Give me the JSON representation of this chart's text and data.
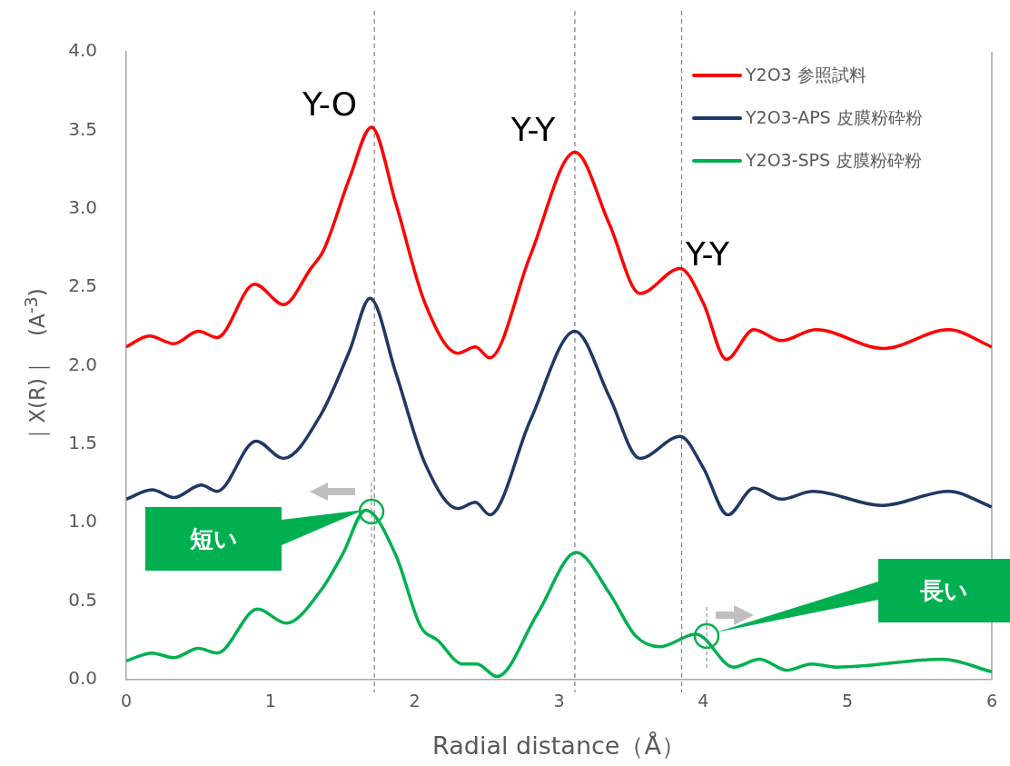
{
  "chart_data": {
    "type": "line",
    "xlabel": "Radial distance（Å）",
    "ylabel": "｜X(R)｜　(A$^{-3}$)",
    "xlim": [
      0,
      6
    ],
    "xticks": [
      0,
      1,
      2,
      3,
      4,
      5,
      6
    ],
    "ylim": [
      0,
      4
    ],
    "yticks": [
      {
        "value": 0,
        "label": "0.0"
      },
      {
        "value": 0.5,
        "label": "0.5"
      },
      {
        "value": 1,
        "label": "1.0"
      },
      {
        "value": 1.5,
        "label": "1.5"
      },
      {
        "value": 2,
        "label": "2.0"
      },
      {
        "value": 2.5,
        "label": "2.5"
      },
      {
        "value": 3,
        "label": "3.0"
      },
      {
        "value": 3.5,
        "label": "3.5"
      },
      {
        "value": 4,
        "label": "4.0"
      }
    ],
    "grid": false,
    "legend": "top right",
    "marker": "none",
    "line_style": "solid",
    "series": [
      {
        "name": "Y2O3 参照試料",
        "color": "#ff0000",
        "x": [
          0,
          0.16,
          0.33,
          0.5,
          0.63,
          0.89,
          1.09,
          1.28,
          1.37,
          1.55,
          1.7,
          1.87,
          2.07,
          2.3,
          2.42,
          2.52,
          2.8,
          3.11,
          3.35,
          3.56,
          3.84,
          4.0,
          4.16,
          4.35,
          4.54,
          4.78,
          5.25,
          5.7,
          6.0
        ],
        "values": [
          2.12,
          2.19,
          2.14,
          2.22,
          2.18,
          2.52,
          2.39,
          2.62,
          2.74,
          3.2,
          3.52,
          3.03,
          2.4,
          2.08,
          2.12,
          2.05,
          2.7,
          3.36,
          2.9,
          2.46,
          2.62,
          2.4,
          2.04,
          2.23,
          2.16,
          2.23,
          2.11,
          2.23,
          2.12
        ]
      },
      {
        "name": "Y2O3-APS 皮膜粉砕粉",
        "color": "#1f3864",
        "x": [
          0,
          0.18,
          0.33,
          0.52,
          0.63,
          0.9,
          1.09,
          1.35,
          1.55,
          1.69,
          1.87,
          2.07,
          2.3,
          2.42,
          2.52,
          2.8,
          3.11,
          3.35,
          3.56,
          3.84,
          4.0,
          4.17,
          4.35,
          4.54,
          4.76,
          5.24,
          5.7,
          6.0
        ],
        "values": [
          1.15,
          1.21,
          1.16,
          1.24,
          1.2,
          1.52,
          1.41,
          1.69,
          2.1,
          2.43,
          1.95,
          1.38,
          1.09,
          1.13,
          1.05,
          1.65,
          2.22,
          1.8,
          1.41,
          1.55,
          1.35,
          1.05,
          1.22,
          1.15,
          1.2,
          1.11,
          1.2,
          1.1
        ]
      },
      {
        "name": "Y2O3-SPS 皮膜粉砕粉",
        "color": "#00b050",
        "x": [
          0,
          0.18,
          0.33,
          0.5,
          0.63,
          0.91,
          1.11,
          1.35,
          1.5,
          1.66,
          1.87,
          2.04,
          2.16,
          2.33,
          2.43,
          2.57,
          2.85,
          3.12,
          3.35,
          3.53,
          3.7,
          3.95,
          4.21,
          4.39,
          4.58,
          4.75,
          4.93,
          5.66,
          6.0
        ],
        "values": [
          0.12,
          0.17,
          0.14,
          0.2,
          0.17,
          0.45,
          0.36,
          0.57,
          0.8,
          1.08,
          0.79,
          0.34,
          0.25,
          0.1,
          0.1,
          0.02,
          0.42,
          0.81,
          0.55,
          0.28,
          0.21,
          0.29,
          0.08,
          0.13,
          0.06,
          0.1,
          0.08,
          0.13,
          0.05
        ]
      }
    ],
    "ref_lines": [
      {
        "axis": "x",
        "value": 1.72,
        "color": "#808080",
        "line_style": "dashed"
      },
      {
        "axis": "x",
        "value": 3.11,
        "color": "#808080",
        "line_style": "dashed"
      },
      {
        "axis": "x",
        "value": 3.85,
        "color": "#808080",
        "line_style": "dashed"
      }
    ],
    "annotations": [
      {
        "text": "Y-O",
        "x": 1.7,
        "y": 3.52
      },
      {
        "text": "Y-Y",
        "x": 3.11,
        "y": 3.36
      },
      {
        "text": "Y-Y",
        "x": 3.84,
        "y": 2.62
      },
      "短い",
      "長い"
    ]
  }
}
